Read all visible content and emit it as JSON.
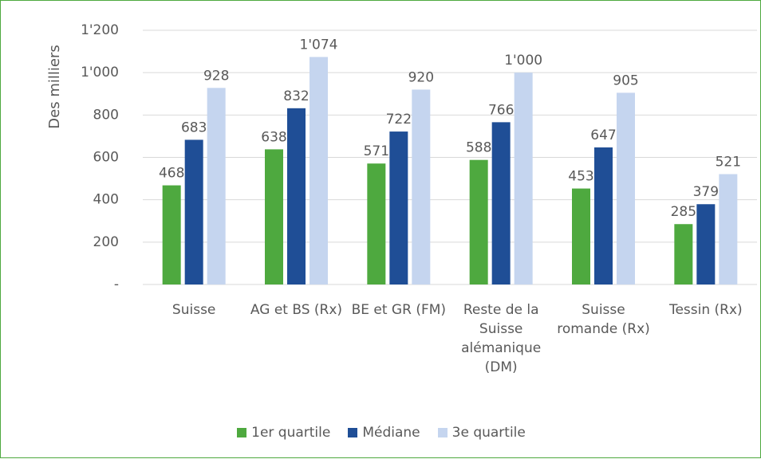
{
  "chart_data": {
    "type": "bar",
    "y_label": "Des milliers",
    "categories": [
      "Suisse",
      "AG et BS (Rx)",
      "BE et GR (FM)",
      "Reste de la Suisse alémanique (DM)",
      "Suisse romande (Rx)",
      "Tessin (Rx)"
    ],
    "series": [
      {
        "name": "1er quartile",
        "color": "#4ea93f",
        "values": [
          468,
          638,
          571,
          588,
          453,
          285
        ]
      },
      {
        "name": "Médiane",
        "color": "#1f4e96",
        "values": [
          683,
          832,
          722,
          766,
          647,
          379
        ]
      },
      {
        "name": "3e quartile",
        "color": "#c5d5ef",
        "values": [
          928,
          1074,
          920,
          1000,
          905,
          521
        ],
        "value_labels": [
          "928",
          "1'074",
          "920",
          "1'000",
          "905",
          "521"
        ]
      }
    ],
    "ylim": [
      0,
      1200
    ],
    "yticks": [
      {
        "value": 0,
        "label": "-"
      },
      200,
      400,
      600,
      800,
      {
        "value": 1000,
        "label": "1'000"
      },
      {
        "value": 1200,
        "label": "1'200"
      }
    ],
    "grid": true,
    "legend": "bottom"
  }
}
